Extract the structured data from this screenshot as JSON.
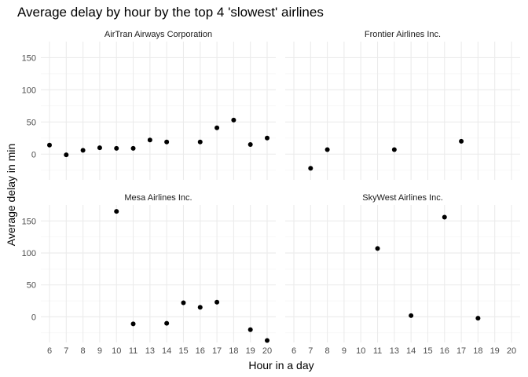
{
  "chart_data": {
    "type": "scatter",
    "title": "Average delay by hour by the top 4 'slowest' airlines",
    "xlabel": "Hour in a day",
    "ylabel": "Average delay in min",
    "x_ticks": [
      6,
      7,
      8,
      9,
      10,
      11,
      13,
      14,
      15,
      16,
      17,
      18,
      19,
      20
    ],
    "y_ticks": [
      0,
      50,
      100,
      150
    ],
    "ylim": [
      -40,
      175
    ],
    "grid": true,
    "facets": [
      {
        "name": "AirTran Airways Corporation",
        "points": [
          {
            "x": 6,
            "y": 14
          },
          {
            "x": 7,
            "y": -1
          },
          {
            "x": 8,
            "y": 6
          },
          {
            "x": 9,
            "y": 10
          },
          {
            "x": 10,
            "y": 9
          },
          {
            "x": 11,
            "y": 9
          },
          {
            "x": 13,
            "y": 22
          },
          {
            "x": 14,
            "y": 19
          },
          {
            "x": 16,
            "y": 19
          },
          {
            "x": 17,
            "y": 41
          },
          {
            "x": 18,
            "y": 53
          },
          {
            "x": 19,
            "y": 15
          },
          {
            "x": 20,
            "y": 25
          }
        ]
      },
      {
        "name": "Frontier Airlines Inc.",
        "points": [
          {
            "x": 7,
            "y": -22
          },
          {
            "x": 8,
            "y": 7
          },
          {
            "x": 13,
            "y": 7
          },
          {
            "x": 17,
            "y": 20
          }
        ]
      },
      {
        "name": "Mesa Airlines Inc.",
        "points": [
          {
            "x": 10,
            "y": 165
          },
          {
            "x": 11,
            "y": -11
          },
          {
            "x": 14,
            "y": -10
          },
          {
            "x": 15,
            "y": 22
          },
          {
            "x": 16,
            "y": 15
          },
          {
            "x": 17,
            "y": 23
          },
          {
            "x": 19,
            "y": -20
          },
          {
            "x": 20,
            "y": -37
          }
        ]
      },
      {
        "name": "SkyWest Airlines Inc.",
        "points": [
          {
            "x": 11,
            "y": 107
          },
          {
            "x": 14,
            "y": 2
          },
          {
            "x": 16,
            "y": 156
          },
          {
            "x": 18,
            "y": -2
          }
        ]
      }
    ]
  }
}
